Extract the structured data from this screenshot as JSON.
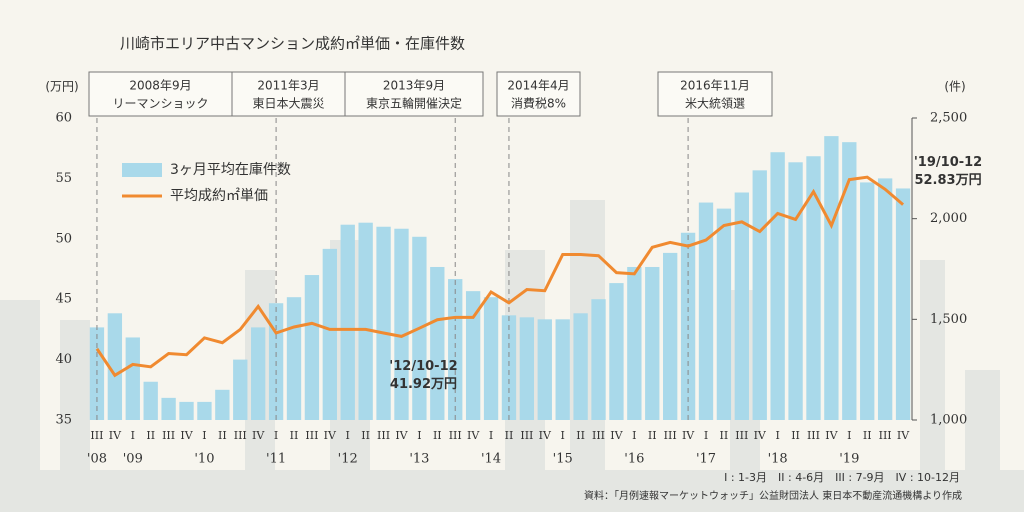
{
  "chart_data": {
    "type": "bar_line",
    "title": "川崎市エリア中古マンション成約㎡単価・在庫件数",
    "y_unit": "(万円)",
    "y2_unit": "(件)",
    "categories": [
      "III",
      "IV",
      "I",
      "II",
      "III",
      "IV",
      "I",
      "II",
      "III",
      "IV",
      "I",
      "II",
      "III",
      "IV",
      "I",
      "II",
      "III",
      "IV",
      "I",
      "II",
      "III",
      "IV",
      "I",
      "II",
      "III",
      "IV",
      "I",
      "II",
      "III",
      "IV",
      "I",
      "II",
      "III",
      "IV",
      "I",
      "II",
      "III",
      "IV",
      "I",
      "II",
      "III",
      "IV",
      "I",
      "II",
      "III",
      "IV"
    ],
    "year_labels": [
      "'08",
      null,
      "'09",
      null,
      null,
      null,
      "'10",
      null,
      null,
      null,
      "'11",
      null,
      null,
      null,
      "'12",
      null,
      null,
      null,
      "'13",
      null,
      null,
      null,
      "'14",
      null,
      null,
      null,
      "'15",
      null,
      null,
      null,
      "'16",
      null,
      null,
      null,
      "'17",
      null,
      null,
      null,
      "'18",
      null,
      null,
      null,
      "'19",
      null,
      null,
      null
    ],
    "series": [
      {
        "name": "3ヶ月平均在庫件数",
        "kind": "bar",
        "axis": "y2",
        "color": "#a9d9ea",
        "values": [
          1460,
          1530,
          1410,
          1190,
          1110,
          1090,
          1090,
          1150,
          1300,
          1460,
          1580,
          1610,
          1720,
          1850,
          1970,
          1980,
          1960,
          1950,
          1910,
          1760,
          1700,
          1640,
          1610,
          1520,
          1510,
          1500,
          1500,
          1530,
          1600,
          1680,
          1760,
          1760,
          1830,
          1930,
          2080,
          2050,
          2130,
          2240,
          2330,
          2280,
          2310,
          2410,
          2380,
          2180,
          2200,
          2150
        ]
      },
      {
        "name": "平均成約㎡単価",
        "kind": "line",
        "axis": "y",
        "color": "#f08a30",
        "values": [
          40.9,
          38.7,
          39.6,
          39.4,
          40.5,
          40.4,
          41.8,
          41.4,
          42.5,
          44.4,
          42.2,
          42.7,
          43.0,
          42.5,
          42.5,
          42.5,
          42.2,
          41.92,
          42.6,
          43.3,
          43.5,
          43.5,
          45.6,
          44.7,
          45.8,
          45.7,
          48.7,
          48.7,
          48.6,
          47.2,
          47.1,
          49.3,
          49.7,
          49.4,
          49.9,
          51.1,
          51.4,
          50.6,
          52.1,
          51.6,
          53.9,
          51.1,
          54.9,
          55.1,
          54.1,
          52.83
        ],
        "value_notes": [
          null,
          null,
          null,
          null,
          null,
          null,
          null,
          null,
          null,
          null,
          null,
          null,
          null,
          null,
          null,
          null,
          null,
          "'12/10-12",
          null,
          null,
          null,
          null,
          null,
          null,
          null,
          null,
          null,
          null,
          null,
          null,
          null,
          null,
          null,
          null,
          null,
          null,
          null,
          null,
          null,
          null,
          null,
          null,
          null,
          null,
          null,
          "'19/10-12"
        ],
        "value_labels": [
          null,
          null,
          null,
          null,
          null,
          null,
          null,
          null,
          null,
          null,
          null,
          null,
          null,
          null,
          null,
          null,
          null,
          "41.92万円",
          null,
          null,
          null,
          null,
          null,
          null,
          null,
          null,
          null,
          null,
          null,
          null,
          null,
          null,
          null,
          null,
          null,
          null,
          null,
          null,
          null,
          null,
          null,
          null,
          null,
          null,
          null,
          "52.83万円"
        ]
      }
    ],
    "ylim": [
      35,
      60
    ],
    "yticks": [
      35,
      40,
      45,
      50,
      55,
      60
    ],
    "y2lim": [
      1000,
      2500
    ],
    "y2ticks": [
      {
        "value": 1000,
        "label": "1,000"
      },
      {
        "value": 1500,
        "label": "1,500"
      },
      {
        "value": 2000,
        "label": "2,000"
      },
      {
        "value": 2500,
        "label": "2,500"
      }
    ],
    "events": [
      {
        "date": "2008年9月",
        "label": "リーマンショック"
      },
      {
        "date": "2011年3月",
        "label": "東日本大震災"
      },
      {
        "date": "2013年9月",
        "label": "東京五輪開催決定"
      },
      {
        "date": "2014年4月",
        "label": "消費税8%"
      },
      {
        "date": "2016年11月",
        "label": "米大統領選"
      }
    ],
    "quarter_note": "I : 1-3月　II : 4-6月　III : 7-9月　IV : 10-12月",
    "source": "資料：「月例速報マーケットウォッチ」公益財団法人 東日本不動産流通機構より作成",
    "legend": "upper-left"
  }
}
